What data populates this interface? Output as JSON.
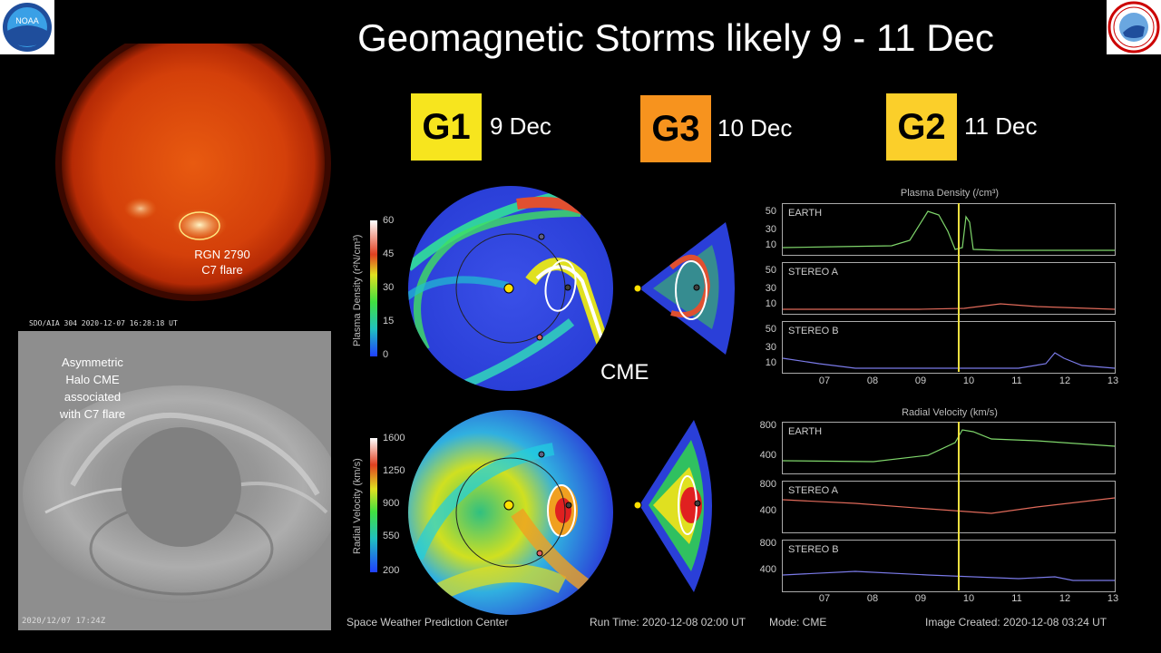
{
  "title": "Geomagnetic Storms likely 9 - 11 Dec",
  "logos": {
    "left": "NOAA",
    "right": "NATIONAL WEATHER SERVICE"
  },
  "storms": [
    {
      "level": "G1",
      "date": "9 Dec",
      "color": "#f7e51e"
    },
    {
      "level": "G3",
      "date": "10 Dec",
      "color": "#f7931e"
    },
    {
      "level": "G2",
      "date": "11 Dec",
      "color": "#fbcf2a"
    }
  ],
  "sun": {
    "region_label_1": "RGN 2790",
    "region_label_2": "C7 flare",
    "caption": "SDO/AIA  304   2020-12-07 16:28:18 UT"
  },
  "coronagraph": {
    "label_lines": [
      "Asymmetric",
      "Halo CME",
      "associated",
      "with C7 flare"
    ],
    "timestamp": "2020/12/07 17:24Z"
  },
  "model": {
    "cme_label": "CME",
    "density_colorbar": {
      "label": "Plasma Density (r²N/cm³)",
      "ticks": [
        "60",
        "45",
        "30",
        "15",
        "0"
      ]
    },
    "velocity_colorbar": {
      "label": "Radial Velocity (km/s)",
      "ticks": [
        "1600",
        "1250",
        "900",
        "550",
        "200"
      ]
    },
    "density_title": "Plasma Density (/cm³)",
    "velocity_title": "Radial Velocity (km/s)",
    "density_plots": [
      {
        "name": "EARTH",
        "yticks": [
          "50",
          "30",
          "10"
        ]
      },
      {
        "name": "STEREO A",
        "yticks": [
          "50",
          "30",
          "10"
        ]
      },
      {
        "name": "STEREO B",
        "yticks": [
          "50",
          "30",
          "10"
        ]
      }
    ],
    "velocity_plots": [
      {
        "name": "EARTH",
        "yticks": [
          "800",
          "400"
        ]
      },
      {
        "name": "STEREO A",
        "yticks": [
          "800",
          "400"
        ]
      },
      {
        "name": "STEREO B",
        "yticks": [
          "800",
          "400"
        ]
      }
    ],
    "xticks": [
      "07",
      "08",
      "09",
      "10",
      "11",
      "12",
      "13"
    ],
    "footer": {
      "center": "Space Weather Prediction Center",
      "run_time": "Run Time: 2020-12-08 02:00 UT",
      "mode": "Mode: CME",
      "created": "Image Created: 2020-12-08 03:24 UT"
    },
    "series_colors": {
      "earth": "#7fd66b",
      "stereo_a": "#e06a5a",
      "stereo_b": "#7a7ae8"
    }
  }
}
